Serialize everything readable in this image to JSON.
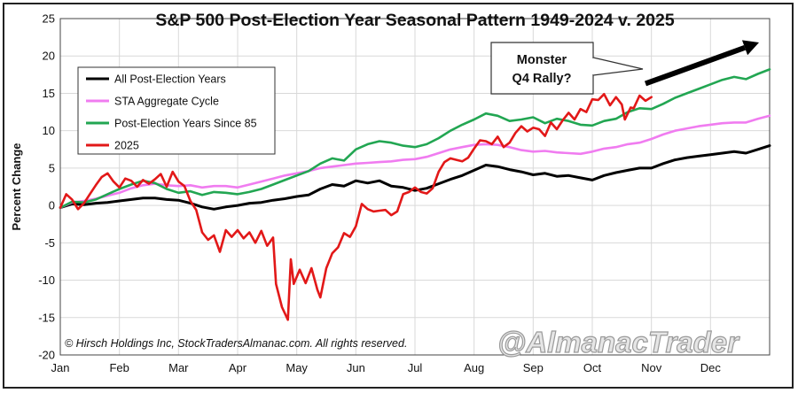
{
  "chart_data": {
    "type": "line",
    "title": "S&P 500 Post-Election Year Seasonal Pattern 1949-2024 v. 2025",
    "xlabel": "",
    "ylabel": "Percent Change",
    "ylim": [
      -20,
      25
    ],
    "yticks": [
      -20,
      -15,
      -10,
      -5,
      0,
      5,
      10,
      15,
      20,
      25
    ],
    "months": [
      "Jan",
      "Feb",
      "Mar",
      "Apr",
      "May",
      "Jun",
      "Jul",
      "Aug",
      "Sep",
      "Oct",
      "Nov",
      "Dec"
    ],
    "x_unit": "month index (0 = start of Jan, 12 = end of Dec)",
    "series": [
      {
        "name": "All Post-Election Years",
        "color": "#000000",
        "points": [
          [
            0,
            -0.3
          ],
          [
            0.2,
            0.2
          ],
          [
            0.4,
            0.1
          ],
          [
            0.6,
            0.3
          ],
          [
            0.8,
            0.4
          ],
          [
            1.0,
            0.6
          ],
          [
            1.2,
            0.8
          ],
          [
            1.4,
            1.0
          ],
          [
            1.6,
            1.0
          ],
          [
            1.8,
            0.8
          ],
          [
            2.0,
            0.7
          ],
          [
            2.2,
            0.3
          ],
          [
            2.4,
            -0.2
          ],
          [
            2.6,
            -0.5
          ],
          [
            2.8,
            -0.2
          ],
          [
            3.0,
            0.0
          ],
          [
            3.2,
            0.3
          ],
          [
            3.4,
            0.4
          ],
          [
            3.6,
            0.7
          ],
          [
            3.8,
            0.9
          ],
          [
            4.0,
            1.2
          ],
          [
            4.2,
            1.4
          ],
          [
            4.4,
            2.2
          ],
          [
            4.6,
            2.8
          ],
          [
            4.8,
            2.6
          ],
          [
            5.0,
            3.3
          ],
          [
            5.2,
            3.0
          ],
          [
            5.4,
            3.3
          ],
          [
            5.6,
            2.6
          ],
          [
            5.8,
            2.4
          ],
          [
            6.0,
            2.0
          ],
          [
            6.2,
            2.3
          ],
          [
            6.4,
            2.9
          ],
          [
            6.6,
            3.5
          ],
          [
            6.8,
            4.0
          ],
          [
            7.0,
            4.7
          ],
          [
            7.2,
            5.4
          ],
          [
            7.4,
            5.2
          ],
          [
            7.6,
            4.8
          ],
          [
            7.8,
            4.5
          ],
          [
            8.0,
            4.1
          ],
          [
            8.2,
            4.3
          ],
          [
            8.4,
            3.9
          ],
          [
            8.6,
            4.0
          ],
          [
            8.8,
            3.7
          ],
          [
            9.0,
            3.4
          ],
          [
            9.2,
            4.0
          ],
          [
            9.4,
            4.4
          ],
          [
            9.6,
            4.7
          ],
          [
            9.8,
            5.0
          ],
          [
            10.0,
            5.0
          ],
          [
            10.2,
            5.6
          ],
          [
            10.4,
            6.1
          ],
          [
            10.6,
            6.4
          ],
          [
            10.8,
            6.6
          ],
          [
            11.0,
            6.8
          ],
          [
            11.2,
            7.0
          ],
          [
            11.4,
            7.2
          ],
          [
            11.6,
            7.0
          ],
          [
            11.8,
            7.5
          ],
          [
            12.0,
            8.0
          ]
        ]
      },
      {
        "name": "STA Aggregate Cycle",
        "color": "#f07cf0",
        "points": [
          [
            0,
            -0.3
          ],
          [
            0.2,
            0.4
          ],
          [
            0.4,
            0.6
          ],
          [
            0.6,
            0.9
          ],
          [
            0.8,
            1.3
          ],
          [
            1.0,
            1.7
          ],
          [
            1.2,
            2.3
          ],
          [
            1.4,
            2.7
          ],
          [
            1.6,
            2.9
          ],
          [
            1.8,
            2.7
          ],
          [
            2.0,
            2.6
          ],
          [
            2.2,
            2.7
          ],
          [
            2.4,
            2.4
          ],
          [
            2.6,
            2.6
          ],
          [
            2.8,
            2.6
          ],
          [
            3.0,
            2.4
          ],
          [
            3.2,
            2.8
          ],
          [
            3.4,
            3.2
          ],
          [
            3.6,
            3.6
          ],
          [
            3.8,
            4.0
          ],
          [
            4.0,
            4.3
          ],
          [
            4.2,
            4.6
          ],
          [
            4.4,
            5.0
          ],
          [
            4.6,
            5.2
          ],
          [
            4.8,
            5.4
          ],
          [
            5.0,
            5.6
          ],
          [
            5.2,
            5.7
          ],
          [
            5.4,
            5.8
          ],
          [
            5.6,
            5.9
          ],
          [
            5.8,
            6.1
          ],
          [
            6.0,
            6.2
          ],
          [
            6.2,
            6.5
          ],
          [
            6.4,
            7.0
          ],
          [
            6.6,
            7.5
          ],
          [
            6.8,
            7.8
          ],
          [
            7.0,
            8.1
          ],
          [
            7.2,
            8.2
          ],
          [
            7.4,
            8.1
          ],
          [
            7.6,
            7.8
          ],
          [
            7.8,
            7.4
          ],
          [
            8.0,
            7.2
          ],
          [
            8.2,
            7.3
          ],
          [
            8.4,
            7.1
          ],
          [
            8.6,
            7.0
          ],
          [
            8.8,
            6.9
          ],
          [
            9.0,
            7.2
          ],
          [
            9.2,
            7.6
          ],
          [
            9.4,
            7.8
          ],
          [
            9.6,
            8.2
          ],
          [
            9.8,
            8.4
          ],
          [
            10.0,
            8.9
          ],
          [
            10.2,
            9.5
          ],
          [
            10.4,
            10.0
          ],
          [
            10.6,
            10.3
          ],
          [
            10.8,
            10.6
          ],
          [
            11.0,
            10.8
          ],
          [
            11.2,
            11.0
          ],
          [
            11.4,
            11.1
          ],
          [
            11.6,
            11.1
          ],
          [
            11.8,
            11.6
          ],
          [
            12.0,
            12.0
          ]
        ]
      },
      {
        "name": "Post-Election Years Since 85",
        "color": "#22a652",
        "points": [
          [
            0,
            -0.3
          ],
          [
            0.2,
            0.5
          ],
          [
            0.4,
            0.4
          ],
          [
            0.6,
            0.8
          ],
          [
            0.8,
            1.5
          ],
          [
            1.0,
            2.2
          ],
          [
            1.2,
            2.8
          ],
          [
            1.4,
            3.3
          ],
          [
            1.6,
            3.0
          ],
          [
            1.8,
            2.2
          ],
          [
            2.0,
            1.7
          ],
          [
            2.2,
            1.9
          ],
          [
            2.4,
            1.4
          ],
          [
            2.6,
            1.8
          ],
          [
            2.8,
            1.7
          ],
          [
            3.0,
            1.5
          ],
          [
            3.2,
            1.8
          ],
          [
            3.4,
            2.2
          ],
          [
            3.6,
            2.8
          ],
          [
            3.8,
            3.4
          ],
          [
            4.0,
            4.0
          ],
          [
            4.2,
            4.6
          ],
          [
            4.4,
            5.6
          ],
          [
            4.6,
            6.3
          ],
          [
            4.8,
            6.0
          ],
          [
            5.0,
            7.5
          ],
          [
            5.2,
            8.2
          ],
          [
            5.4,
            8.6
          ],
          [
            5.6,
            8.4
          ],
          [
            5.8,
            8.0
          ],
          [
            6.0,
            7.8
          ],
          [
            6.2,
            8.2
          ],
          [
            6.4,
            9.0
          ],
          [
            6.6,
            10.0
          ],
          [
            6.8,
            10.8
          ],
          [
            7.0,
            11.5
          ],
          [
            7.2,
            12.3
          ],
          [
            7.4,
            12.0
          ],
          [
            7.6,
            11.3
          ],
          [
            7.8,
            11.5
          ],
          [
            8.0,
            11.8
          ],
          [
            8.2,
            11.0
          ],
          [
            8.4,
            11.6
          ],
          [
            8.6,
            11.3
          ],
          [
            8.8,
            10.8
          ],
          [
            9.0,
            10.7
          ],
          [
            9.2,
            11.3
          ],
          [
            9.4,
            11.6
          ],
          [
            9.6,
            12.5
          ],
          [
            9.8,
            13.0
          ],
          [
            10.0,
            12.9
          ],
          [
            10.2,
            13.6
          ],
          [
            10.4,
            14.4
          ],
          [
            10.6,
            15.0
          ],
          [
            10.8,
            15.6
          ],
          [
            11.0,
            16.2
          ],
          [
            11.2,
            16.8
          ],
          [
            11.4,
            17.2
          ],
          [
            11.6,
            16.9
          ],
          [
            11.8,
            17.6
          ],
          [
            12.0,
            18.2
          ]
        ]
      },
      {
        "name": "2025",
        "color": "#e21818",
        "points": [
          [
            0,
            -0.3
          ],
          [
            0.1,
            1.5
          ],
          [
            0.2,
            0.8
          ],
          [
            0.3,
            -0.5
          ],
          [
            0.4,
            0.3
          ],
          [
            0.5,
            1.5
          ],
          [
            0.6,
            2.7
          ],
          [
            0.7,
            3.8
          ],
          [
            0.8,
            4.3
          ],
          [
            0.9,
            3.2
          ],
          [
            1.0,
            2.4
          ],
          [
            1.1,
            3.6
          ],
          [
            1.2,
            3.3
          ],
          [
            1.3,
            2.5
          ],
          [
            1.4,
            3.4
          ],
          [
            1.5,
            2.9
          ],
          [
            1.6,
            3.5
          ],
          [
            1.7,
            4.2
          ],
          [
            1.8,
            2.5
          ],
          [
            1.9,
            4.5
          ],
          [
            2.0,
            3.2
          ],
          [
            2.1,
            2.6
          ],
          [
            2.2,
            0.6
          ],
          [
            2.3,
            -0.6
          ],
          [
            2.4,
            -3.6
          ],
          [
            2.5,
            -4.6
          ],
          [
            2.6,
            -4.0
          ],
          [
            2.7,
            -6.2
          ],
          [
            2.8,
            -3.3
          ],
          [
            2.9,
            -4.2
          ],
          [
            3.0,
            -3.3
          ],
          [
            3.1,
            -4.4
          ],
          [
            3.2,
            -3.6
          ],
          [
            3.3,
            -5.0
          ],
          [
            3.4,
            -3.4
          ],
          [
            3.5,
            -5.4
          ],
          [
            3.6,
            -4.3
          ],
          [
            3.65,
            -10.5
          ],
          [
            3.75,
            -13.6
          ],
          [
            3.85,
            -15.3
          ],
          [
            3.9,
            -7.2
          ],
          [
            3.95,
            -10.5
          ],
          [
            4.05,
            -8.6
          ],
          [
            4.15,
            -10.4
          ],
          [
            4.25,
            -8.4
          ],
          [
            4.35,
            -11.3
          ],
          [
            4.4,
            -12.3
          ],
          [
            4.5,
            -8.4
          ],
          [
            4.6,
            -6.4
          ],
          [
            4.7,
            -5.6
          ],
          [
            4.8,
            -3.7
          ],
          [
            4.9,
            -4.2
          ],
          [
            5.0,
            -2.8
          ],
          [
            5.1,
            0.2
          ],
          [
            5.2,
            -0.5
          ],
          [
            5.3,
            -0.8
          ],
          [
            5.4,
            -0.7
          ],
          [
            5.5,
            -0.6
          ],
          [
            5.6,
            -1.3
          ],
          [
            5.7,
            -0.8
          ],
          [
            5.8,
            1.5
          ],
          [
            5.9,
            1.8
          ],
          [
            6.0,
            2.4
          ],
          [
            6.1,
            1.8
          ],
          [
            6.2,
            1.6
          ],
          [
            6.3,
            2.3
          ],
          [
            6.4,
            4.5
          ],
          [
            6.5,
            5.8
          ],
          [
            6.6,
            6.3
          ],
          [
            6.7,
            6.1
          ],
          [
            6.8,
            5.9
          ],
          [
            6.9,
            6.4
          ],
          [
            7.0,
            7.6
          ],
          [
            7.1,
            8.7
          ],
          [
            7.2,
            8.6
          ],
          [
            7.3,
            8.2
          ],
          [
            7.4,
            9.2
          ],
          [
            7.5,
            7.8
          ],
          [
            7.6,
            8.4
          ],
          [
            7.7,
            9.7
          ],
          [
            7.8,
            10.6
          ],
          [
            7.9,
            9.9
          ],
          [
            8.0,
            10.4
          ],
          [
            8.1,
            10.2
          ],
          [
            8.2,
            9.3
          ],
          [
            8.3,
            11.1
          ],
          [
            8.4,
            10.2
          ],
          [
            8.5,
            11.4
          ],
          [
            8.6,
            12.4
          ],
          [
            8.7,
            11.5
          ],
          [
            8.8,
            12.9
          ],
          [
            8.9,
            12.5
          ],
          [
            9.0,
            14.2
          ],
          [
            9.1,
            14.1
          ],
          [
            9.2,
            14.9
          ],
          [
            9.3,
            13.4
          ],
          [
            9.4,
            14.5
          ],
          [
            9.5,
            13.5
          ],
          [
            9.55,
            11.5
          ],
          [
            9.65,
            13.1
          ],
          [
            9.7,
            13.0
          ],
          [
            9.8,
            14.7
          ],
          [
            9.9,
            14.0
          ],
          [
            10.0,
            14.5
          ]
        ]
      }
    ],
    "legend": {
      "placement": "top-left",
      "entries": [
        "All Post-Election Years",
        "STA Aggregate Cycle",
        "Post-Election Years Since 85",
        "2025"
      ]
    },
    "annotations": [
      {
        "text_lines": [
          "Monster",
          "Q4 Rally?"
        ],
        "kind": "callout"
      },
      {
        "text": "arrow",
        "kind": "trend-arrow",
        "from": [
          9.9,
          16.3
        ],
        "to": [
          12.0,
          21.8
        ]
      }
    ],
    "copyright": "© Hirsch Holdings Inc, StockTradersAlmanac.com. All rights reserved.",
    "watermark": "@AlmanacTrader",
    "grid": true
  }
}
